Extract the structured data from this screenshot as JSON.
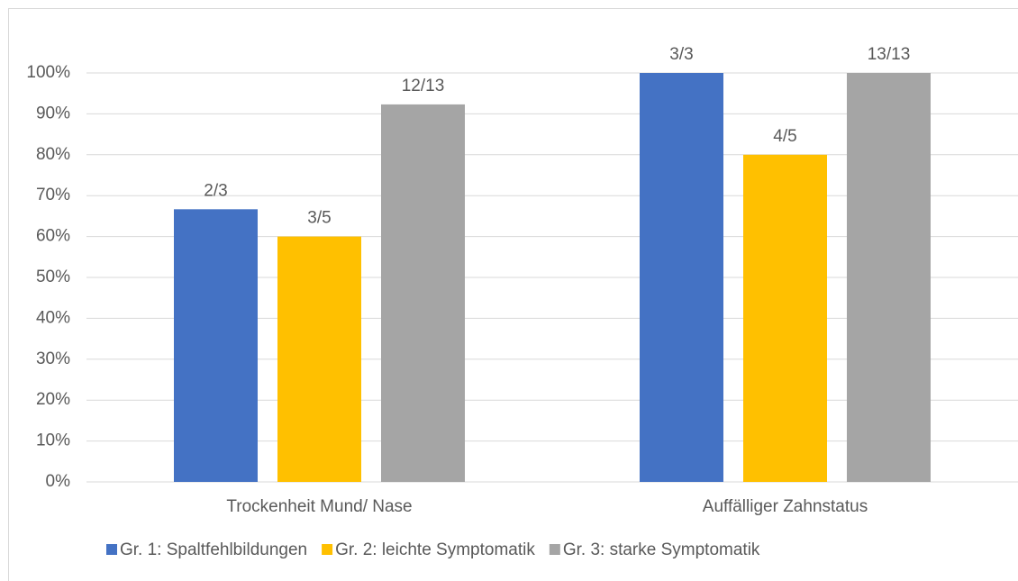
{
  "chart_data": {
    "type": "bar",
    "categories": [
      "Trockenheit Mund/ Nase",
      "Auffälliger Zahnstatus"
    ],
    "series": [
      {
        "name": "Gr. 1: Spaltfehlbildungen",
        "color": "#4472c4",
        "values": [
          66.67,
          100
        ],
        "value_labels": [
          "2/3",
          "3/3"
        ]
      },
      {
        "name": "Gr. 2: leichte Symptomatik",
        "color": "#ffc000",
        "values": [
          60,
          80
        ],
        "value_labels": [
          "3/5",
          "4/5"
        ]
      },
      {
        "name": "Gr. 3: starke Symptomatik",
        "color": "#a5a5a5",
        "values": [
          92.31,
          100
        ],
        "value_labels": [
          "12/13",
          "13/13"
        ]
      }
    ],
    "ylim": [
      0,
      100
    ],
    "yticks": [
      {
        "value": 0,
        "label": "0%"
      },
      {
        "value": 10,
        "label": "10%"
      },
      {
        "value": 20,
        "label": "20%"
      },
      {
        "value": 30,
        "label": "30%"
      },
      {
        "value": 40,
        "label": "40%"
      },
      {
        "value": 50,
        "label": "50%"
      },
      {
        "value": 60,
        "label": "60%"
      },
      {
        "value": 70,
        "label": "70%"
      },
      {
        "value": 80,
        "label": "80%"
      },
      {
        "value": 90,
        "label": "90%"
      },
      {
        "value": 100,
        "label": "100%"
      }
    ],
    "grid": true,
    "legend": "bottom"
  }
}
